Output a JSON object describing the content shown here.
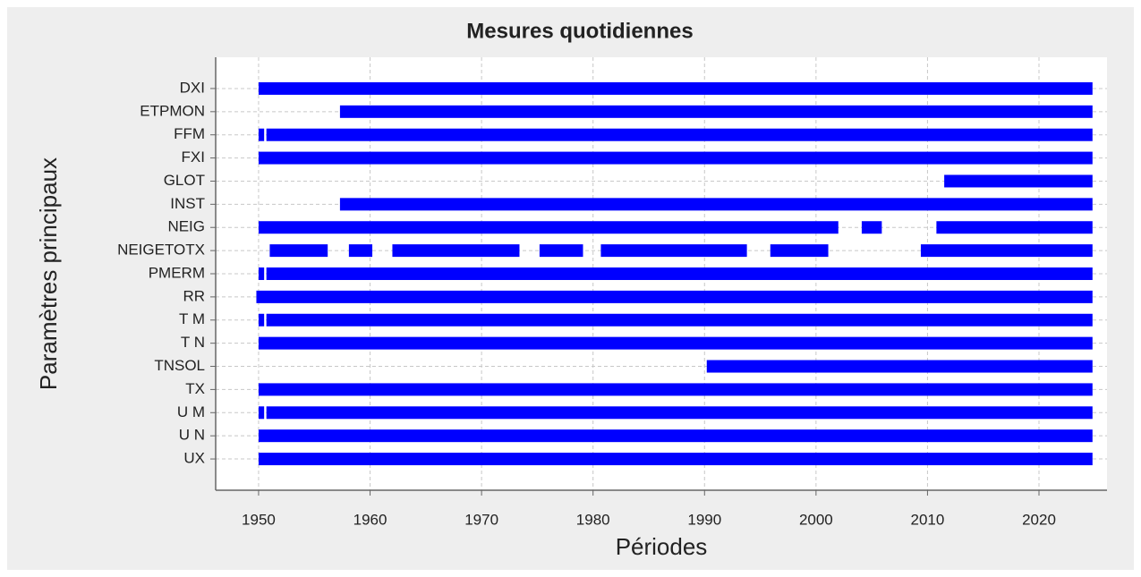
{
  "chart_data": {
    "type": "timeline",
    "title": "Mesures quotidiennes",
    "xlabel": "Périodes",
    "ylabel": "Paramètres principaux",
    "color": "#0000ff",
    "grid": true,
    "xlim": [
      1946.15,
      2026.1
    ],
    "xticks": [
      1950,
      1960,
      1970,
      1980,
      1990,
      2000,
      2010,
      2020
    ],
    "categories": [
      "DXI",
      "ETPMON",
      "FFM",
      "FXI",
      "GLOT",
      "INST",
      "NEIG",
      "NEIGETOTX",
      "PMERM",
      "RR",
      "T M",
      "T N",
      "TNSOL",
      "TX",
      "U M",
      "U N",
      "UX"
    ],
    "intervals": [
      [
        [
          1950,
          2024.8
        ]
      ],
      [
        [
          1957.3,
          2024.8
        ]
      ],
      [
        [
          1950,
          1950.5
        ],
        [
          1950.7,
          2024.8
        ]
      ],
      [
        [
          1950,
          2024.8
        ]
      ],
      [
        [
          2011.5,
          2024.8
        ]
      ],
      [
        [
          1957.3,
          2024.8
        ]
      ],
      [
        [
          1950,
          2002.0
        ],
        [
          2004.1,
          2005.9
        ],
        [
          2010.8,
          2024.8
        ]
      ],
      [
        [
          1951.0,
          1956.2
        ],
        [
          1958.1,
          1960.2
        ],
        [
          1962.0,
          1973.4
        ],
        [
          1975.2,
          1979.1
        ],
        [
          1980.7,
          1993.8
        ],
        [
          1995.9,
          2001.1
        ],
        [
          2009.4,
          2024.8
        ]
      ],
      [
        [
          1950,
          1950.5
        ],
        [
          1950.7,
          2024.8
        ]
      ],
      [
        [
          1949.8,
          2024.8
        ]
      ],
      [
        [
          1950,
          1950.5
        ],
        [
          1950.7,
          2024.8
        ]
      ],
      [
        [
          1950,
          2024.8
        ]
      ],
      [
        [
          1990.2,
          2024.8
        ]
      ],
      [
        [
          1950,
          2024.8
        ]
      ],
      [
        [
          1950,
          1950.5
        ],
        [
          1950.7,
          2024.8
        ]
      ],
      [
        [
          1950,
          2024.8
        ]
      ],
      [
        [
          1950,
          2024.8
        ]
      ]
    ]
  }
}
